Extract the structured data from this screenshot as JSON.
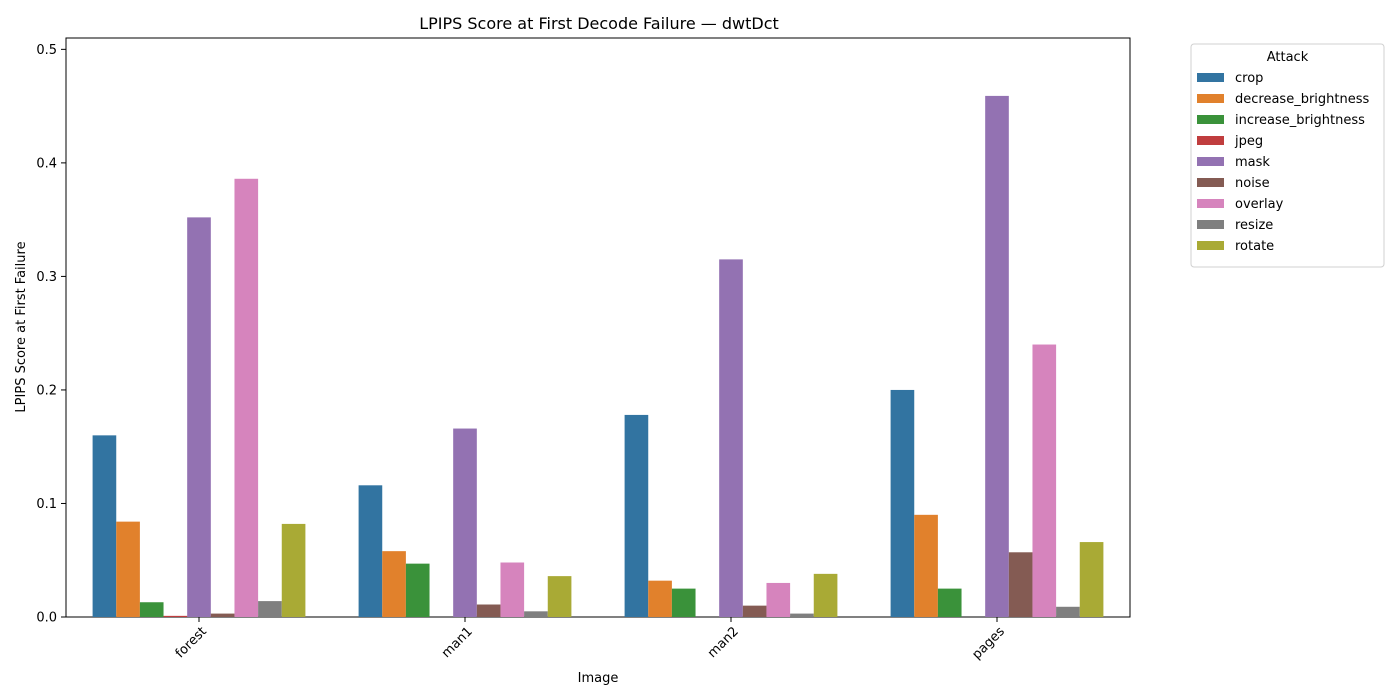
{
  "chart_data": {
    "type": "bar",
    "title": "LPIPS Score at First Decode Failure — dwtDct",
    "xlabel": "Image",
    "ylabel": "LPIPS Score at First Failure",
    "ylim": [
      0,
      0.51
    ],
    "yticks": [
      0.0,
      0.1,
      0.2,
      0.3,
      0.4,
      0.5
    ],
    "categories": [
      "forest",
      "man1",
      "man2",
      "pages"
    ],
    "legend": {
      "title": "Attack",
      "placement": "outside-right"
    },
    "series": [
      {
        "name": "crop",
        "color": "#3274a1",
        "values": [
          0.16,
          0.116,
          0.178,
          0.2
        ]
      },
      {
        "name": "decrease_brightness",
        "color": "#e1812c",
        "values": [
          0.084,
          0.058,
          0.032,
          0.09
        ]
      },
      {
        "name": "increase_brightness",
        "color": "#3a923a",
        "values": [
          0.013,
          0.047,
          0.025,
          0.025
        ]
      },
      {
        "name": "jpeg",
        "color": "#c03d3e",
        "values": [
          0.001,
          0.0,
          0.0,
          0.0
        ]
      },
      {
        "name": "mask",
        "color": "#9372b2",
        "values": [
          0.352,
          0.166,
          0.315,
          0.459
        ]
      },
      {
        "name": "noise",
        "color": "#845b53",
        "values": [
          0.003,
          0.011,
          0.01,
          0.057
        ]
      },
      {
        "name": "overlay",
        "color": "#d684bd",
        "values": [
          0.386,
          0.048,
          0.03,
          0.24
        ]
      },
      {
        "name": "resize",
        "color": "#7f7f7f",
        "values": [
          0.014,
          0.005,
          0.003,
          0.009
        ]
      },
      {
        "name": "rotate",
        "color": "#a9aa35",
        "values": [
          0.082,
          0.036,
          0.038,
          0.066
        ]
      }
    ]
  }
}
